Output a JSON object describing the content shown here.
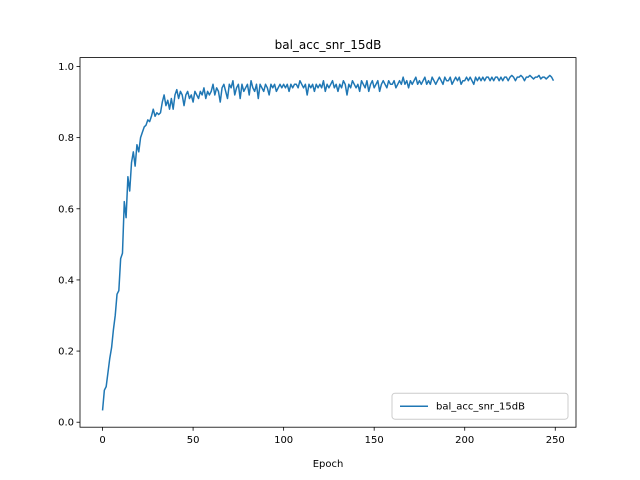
{
  "chart_data": {
    "type": "line",
    "title": "bal_acc_snr_15dB",
    "xlabel": "Epoch",
    "x": [
      0,
      1,
      2,
      3,
      4,
      5,
      6,
      7,
      8,
      9,
      10,
      11,
      12,
      13,
      14,
      15,
      16,
      17,
      18,
      19,
      20,
      21,
      22,
      23,
      24,
      25,
      26,
      27,
      28,
      29,
      30,
      31,
      32,
      33,
      34,
      35,
      36,
      37,
      38,
      39,
      40,
      41,
      42,
      43,
      44,
      45,
      46,
      47,
      48,
      49,
      50,
      51,
      52,
      53,
      54,
      55,
      56,
      57,
      58,
      59,
      60,
      61,
      62,
      63,
      64,
      65,
      66,
      67,
      68,
      69,
      70,
      71,
      72,
      73,
      74,
      75,
      76,
      77,
      78,
      79,
      80,
      81,
      82,
      83,
      84,
      85,
      86,
      87,
      88,
      89,
      90,
      91,
      92,
      93,
      94,
      95,
      96,
      97,
      98,
      99,
      100,
      101,
      102,
      103,
      104,
      105,
      106,
      107,
      108,
      109,
      110,
      111,
      112,
      113,
      114,
      115,
      116,
      117,
      118,
      119,
      120,
      121,
      122,
      123,
      124,
      125,
      126,
      127,
      128,
      129,
      130,
      131,
      132,
      133,
      134,
      135,
      136,
      137,
      138,
      139,
      140,
      141,
      142,
      143,
      144,
      145,
      146,
      147,
      148,
      149,
      150,
      151,
      152,
      153,
      154,
      155,
      156,
      157,
      158,
      159,
      160,
      161,
      162,
      163,
      164,
      165,
      166,
      167,
      168,
      169,
      170,
      171,
      172,
      173,
      174,
      175,
      176,
      177,
      178,
      179,
      180,
      181,
      182,
      183,
      184,
      185,
      186,
      187,
      188,
      189,
      190,
      191,
      192,
      193,
      194,
      195,
      196,
      197,
      198,
      199,
      200,
      201,
      202,
      203,
      204,
      205,
      206,
      207,
      208,
      209,
      210,
      211,
      212,
      213,
      214,
      215,
      216,
      217,
      218,
      219,
      220,
      221,
      222,
      223,
      224,
      225,
      226,
      227,
      228,
      229,
      230,
      231,
      232,
      233,
      234,
      235,
      236,
      237,
      238,
      239,
      240,
      241,
      242,
      243,
      244,
      245,
      246,
      247,
      248,
      249
    ],
    "series": [
      {
        "name": "bal_acc_snr_15dB",
        "color": "#1f77b4",
        "values": [
          0.033,
          0.09,
          0.1,
          0.14,
          0.18,
          0.21,
          0.26,
          0.3,
          0.36,
          0.37,
          0.46,
          0.475,
          0.62,
          0.575,
          0.69,
          0.65,
          0.73,
          0.76,
          0.72,
          0.78,
          0.76,
          0.8,
          0.815,
          0.83,
          0.835,
          0.85,
          0.845,
          0.86,
          0.88,
          0.86,
          0.87,
          0.865,
          0.87,
          0.9,
          0.92,
          0.89,
          0.905,
          0.88,
          0.91,
          0.88,
          0.92,
          0.935,
          0.91,
          0.93,
          0.92,
          0.89,
          0.92,
          0.93,
          0.91,
          0.92,
          0.9,
          0.93,
          0.92,
          0.91,
          0.93,
          0.92,
          0.94,
          0.91,
          0.93,
          0.92,
          0.93,
          0.95,
          0.92,
          0.94,
          0.93,
          0.9,
          0.94,
          0.95,
          0.93,
          0.91,
          0.95,
          0.94,
          0.96,
          0.92,
          0.94,
          0.95,
          0.91,
          0.95,
          0.93,
          0.94,
          0.95,
          0.92,
          0.96,
          0.94,
          0.93,
          0.95,
          0.91,
          0.95,
          0.94,
          0.93,
          0.95,
          0.94,
          0.92,
          0.95,
          0.94,
          0.95,
          0.93,
          0.94,
          0.95,
          0.94,
          0.95,
          0.94,
          0.95,
          0.93,
          0.95,
          0.94,
          0.95,
          0.95,
          0.94,
          0.96,
          0.95,
          0.94,
          0.95,
          0.92,
          0.95,
          0.94,
          0.95,
          0.93,
          0.95,
          0.94,
          0.95,
          0.94,
          0.96,
          0.93,
          0.95,
          0.94,
          0.95,
          0.96,
          0.94,
          0.95,
          0.93,
          0.95,
          0.94,
          0.96,
          0.95,
          0.92,
          0.95,
          0.94,
          0.96,
          0.95,
          0.94,
          0.95,
          0.93,
          0.96,
          0.95,
          0.94,
          0.96,
          0.93,
          0.95,
          0.96,
          0.94,
          0.95,
          0.96,
          0.93,
          0.95,
          0.96,
          0.95,
          0.94,
          0.96,
          0.95,
          0.95,
          0.96,
          0.94,
          0.95,
          0.96,
          0.95,
          0.97,
          0.95,
          0.96,
          0.94,
          0.96,
          0.95,
          0.96,
          0.97,
          0.95,
          0.96,
          0.95,
          0.96,
          0.97,
          0.95,
          0.96,
          0.95,
          0.97,
          0.96,
          0.95,
          0.96,
          0.97,
          0.96,
          0.95,
          0.97,
          0.96,
          0.96,
          0.97,
          0.95,
          0.96,
          0.97,
          0.96,
          0.97,
          0.95,
          0.96,
          0.96,
          0.97,
          0.96,
          0.97,
          0.96,
          0.95,
          0.97,
          0.96,
          0.97,
          0.96,
          0.97,
          0.96,
          0.97,
          0.97,
          0.96,
          0.97,
          0.96,
          0.97,
          0.97,
          0.96,
          0.97,
          0.96,
          0.97,
          0.97,
          0.96,
          0.97,
          0.975,
          0.97,
          0.96,
          0.97,
          0.97,
          0.975,
          0.97,
          0.96,
          0.97,
          0.97,
          0.975,
          0.97,
          0.965,
          0.97,
          0.97,
          0.975,
          0.965,
          0.97,
          0.97,
          0.965,
          0.97,
          0.975,
          0.97,
          0.96
        ]
      }
    ],
    "xlim": [
      -12.45,
      261.45
    ],
    "ylim": [
      -0.014,
      1.025
    ],
    "xticks": [
      0,
      50,
      100,
      150,
      200,
      250
    ],
    "yticks": [
      {
        "value": 0,
        "label": "0.0"
      },
      0.2,
      0.4,
      0.6,
      0.8,
      {
        "value": 1,
        "label": "1.0"
      }
    ],
    "legend": "lower right"
  }
}
